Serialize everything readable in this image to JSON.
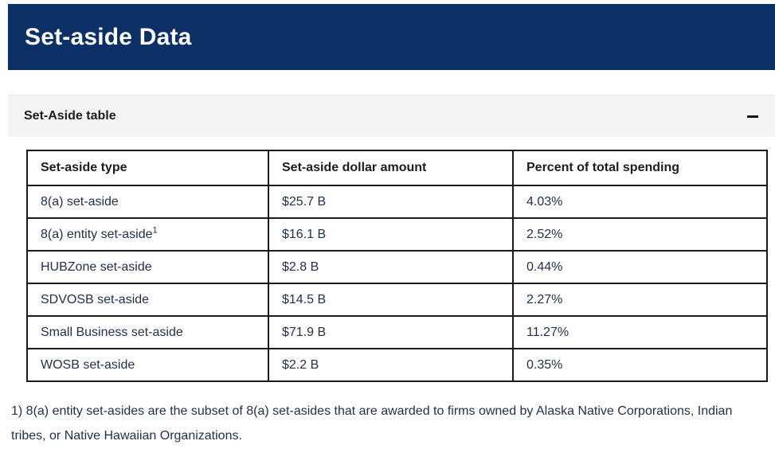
{
  "page": {
    "title": "Set-aside Data"
  },
  "accordion": {
    "title": "Set-Aside table",
    "state": "expanded",
    "collapse_icon": "minus"
  },
  "table": {
    "columns": [
      "Set-aside type",
      "Set-aside dollar amount",
      "Percent of total spending"
    ],
    "rows": [
      {
        "type": "8(a) set-aside",
        "amount": "$25.7 B",
        "percent": "4.03%"
      },
      {
        "type": "8(a) entity set-aside",
        "footnote_marker": "1",
        "amount": "$16.1 B",
        "percent": "2.52%"
      },
      {
        "type": "HUBZone set-aside",
        "amount": "$2.8 B",
        "percent": "0.44%"
      },
      {
        "type": "SDVOSB set-aside",
        "amount": "$14.5 B",
        "percent": "2.27%"
      },
      {
        "type": "Small Business set-aside",
        "amount": "$71.9 B",
        "percent": "11.27%"
      },
      {
        "type": "WOSB set-aside",
        "amount": "$2.2 B",
        "percent": "0.35%"
      }
    ]
  },
  "footnote": {
    "text": "1) 8(a) entity set-asides are the subset of 8(a) set-asides that are awarded to firms owned by Alaska Native Corporations, Indian tribes, or Native Hawaiian Organizations."
  },
  "colors": {
    "banner_background": "#0c2f66",
    "banner_text": "#ffffff",
    "accordion_background": "#f4f4f5",
    "table_border": "#1b1b1b",
    "body_text": "#22304a"
  }
}
